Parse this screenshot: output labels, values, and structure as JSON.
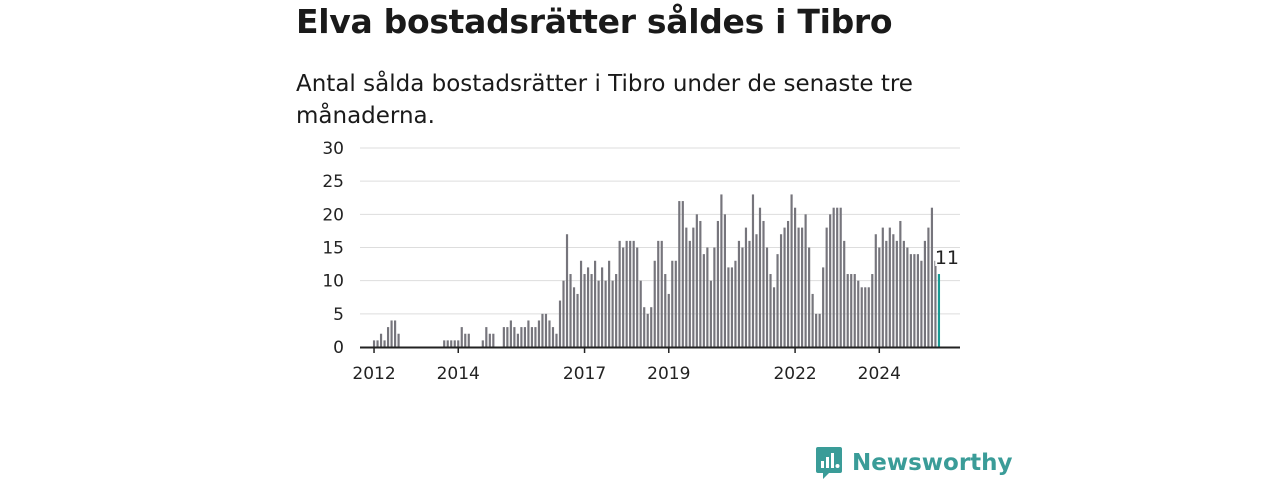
{
  "title": "Elva bostadsrätter såldes i Tibro",
  "subtitle": "Antal sålda bostadsrätter i Tibro under de senaste tre månaderna.",
  "brand": {
    "name": "Newsworthy",
    "color": "#3a9c98"
  },
  "colors": {
    "bar": "#76757c",
    "highlight": "#1a9a93",
    "grid": "#dddddd",
    "axis": "#222222"
  },
  "chart_data": {
    "type": "bar",
    "title": "Elva bostadsrätter såldes i Tibro",
    "subtitle": "Antal sålda bostadsrätter i Tibro under de senaste tre månaderna.",
    "xlabel": "",
    "ylabel": "",
    "ylim": [
      0,
      30
    ],
    "yticks": [
      0,
      5,
      10,
      15,
      20,
      25,
      30
    ],
    "xlim": [
      "2011-09",
      "2025-12"
    ],
    "xticks": [
      {
        "label": "2012",
        "at": "2012-01"
      },
      {
        "label": "2014",
        "at": "2014-01"
      },
      {
        "label": "2017",
        "at": "2017-01"
      },
      {
        "label": "2019",
        "at": "2019-01"
      },
      {
        "label": "2022",
        "at": "2022-01"
      },
      {
        "label": "2024",
        "at": "2024-01"
      }
    ],
    "grid": true,
    "start_month": "2012-01",
    "values": [
      1,
      1,
      2,
      1,
      3,
      4,
      4,
      2,
      0,
      0,
      0,
      0,
      0,
      0,
      0,
      0,
      0,
      0,
      0,
      0,
      1,
      1,
      1,
      1,
      1,
      3,
      2,
      2,
      0,
      0,
      0,
      1,
      3,
      2,
      2,
      0,
      0,
      3,
      3,
      4,
      3,
      2,
      3,
      3,
      4,
      3,
      3,
      4,
      5,
      5,
      4,
      3,
      2,
      7,
      10,
      17,
      11,
      9,
      8,
      13,
      11,
      12,
      11,
      13,
      10,
      12,
      10,
      13,
      10,
      11,
      16,
      15,
      16,
      16,
      16,
      15,
      10,
      6,
      5,
      6,
      13,
      16,
      16,
      11,
      8,
      13,
      13,
      22,
      22,
      18,
      16,
      18,
      20,
      19,
      14,
      15,
      10,
      15,
      19,
      23,
      20,
      12,
      12,
      13,
      16,
      15,
      18,
      16,
      23,
      17,
      21,
      19,
      15,
      11,
      9,
      14,
      17,
      18,
      19,
      23,
      21,
      18,
      18,
      20,
      15,
      8,
      5,
      5,
      12,
      18,
      20,
      21,
      21,
      21,
      16,
      11,
      11,
      11,
      10,
      9,
      9,
      9,
      11,
      17,
      15,
      18,
      16,
      18,
      17,
      16,
      19,
      16,
      15,
      14,
      14,
      14,
      13,
      16,
      18,
      21,
      13,
      11
    ],
    "highlight": {
      "month": "2025-06",
      "value": 11,
      "label": "11"
    }
  }
}
